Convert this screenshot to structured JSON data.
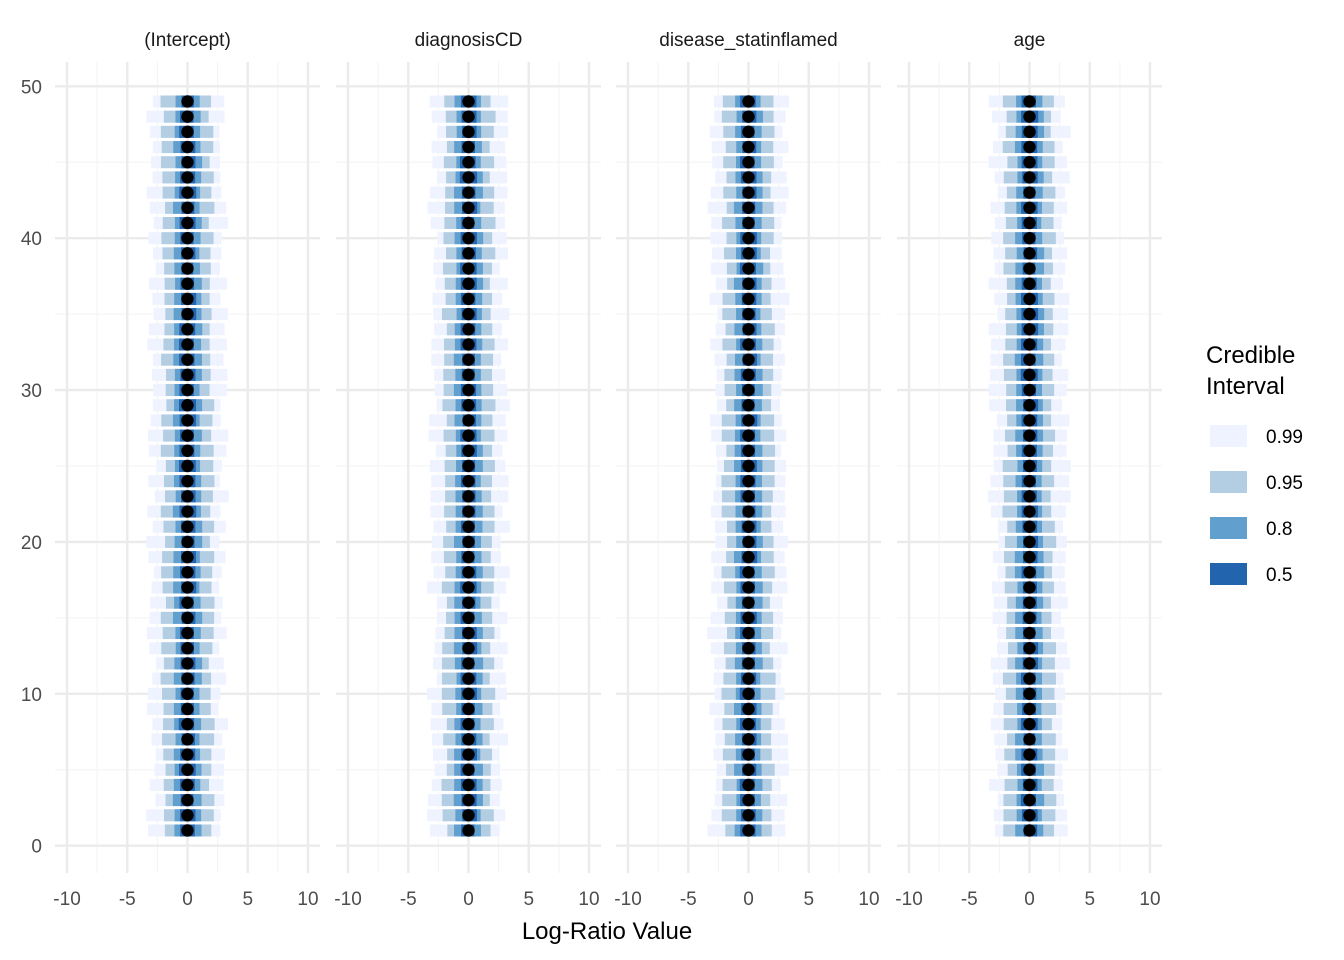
{
  "chart_data": {
    "type": "interval",
    "facets": [
      "(Intercept)",
      "diagnosisCD",
      "disease_statinflamed",
      "age"
    ],
    "xlabel": "Log-Ratio Value",
    "ylabel": "",
    "xlim": [
      -11,
      11
    ],
    "ylim": [
      -1.8,
      51.6
    ],
    "x_ticks": [
      -10,
      -5,
      0,
      5,
      10
    ],
    "x_tick_labels": [
      "-10",
      "-5",
      "0",
      "5",
      "10"
    ],
    "y_ticks": [
      0,
      10,
      20,
      30,
      40,
      50
    ],
    "y_tick_labels": [
      "0",
      "10",
      "20",
      "30",
      "40",
      "50"
    ],
    "grid": true,
    "y_categories": [
      1,
      2,
      3,
      4,
      5,
      6,
      7,
      8,
      9,
      10,
      11,
      12,
      13,
      14,
      15,
      16,
      17,
      18,
      19,
      20,
      21,
      22,
      23,
      24,
      25,
      26,
      27,
      28,
      29,
      30,
      31,
      32,
      33,
      34,
      35,
      36,
      37,
      38,
      39,
      40,
      41,
      42,
      43,
      44,
      45,
      46,
      47,
      48,
      49
    ],
    "median_x": 0,
    "legend": {
      "title_lines": [
        "Credible",
        "Interval"
      ],
      "position": "right",
      "entries": [
        {
          "label": "0.99",
          "color": "#eff3ff"
        },
        {
          "label": "0.95",
          "color": "#b3cde3"
        },
        {
          "label": "0.8",
          "color": "#619fcf"
        },
        {
          "label": "0.5",
          "color": "#2264ad"
        }
      ]
    },
    "interval_half_widths": {
      "0.5": 0.6,
      "0.8": 1.1,
      "0.95": 2.0,
      "0.99": 3.0
    },
    "colors": {
      "grid_major": "#ebebeb",
      "grid_minor": "#f5f5f5",
      "point": "#000000"
    }
  }
}
